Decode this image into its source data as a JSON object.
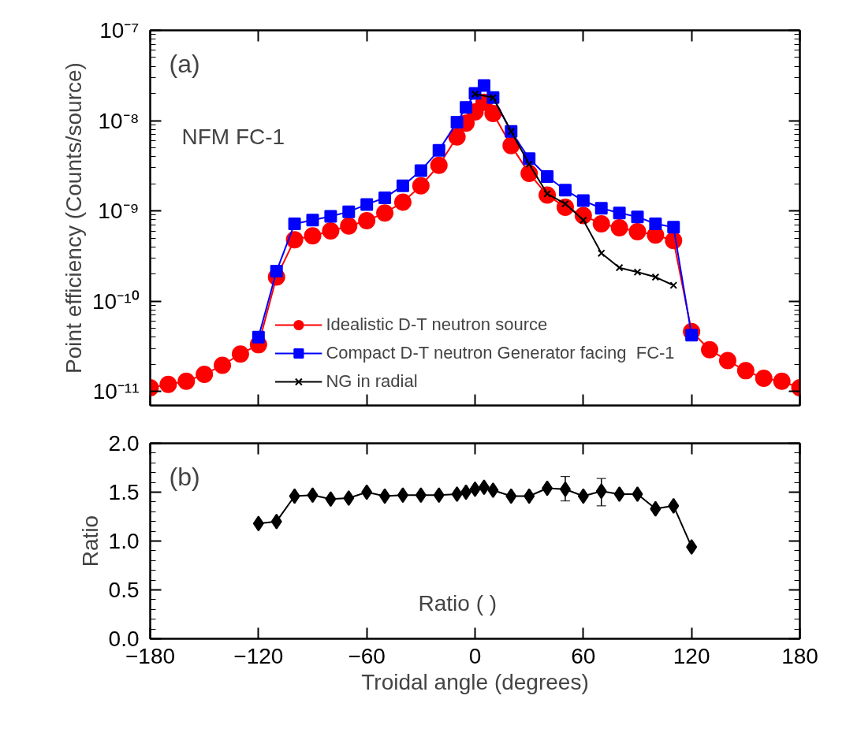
{
  "chart_data": [
    {
      "type": "line",
      "ylabel": "Point efficiency (Counts/source)",
      "log": "y",
      "grid": false,
      "legend": "bottom",
      "tick_labels": "y",
      "annotations": [
        "(a)",
        "NFM FC-1"
      ],
      "xlim": [
        -180,
        180
      ],
      "xticks": [
        -180,
        -120,
        -60,
        0,
        60,
        120,
        180
      ],
      "ylim": [
        7e-12,
        1e-07
      ],
      "yticks": [
        {
          "value": 1e-11,
          "label": "10⁻¹¹"
        },
        {
          "value": 1e-10,
          "label": "10⁻¹⁰"
        },
        {
          "value": 1e-09,
          "label": "10⁻⁹"
        },
        {
          "value": 1e-08,
          "label": "10⁻⁸"
        },
        {
          "value": 1e-07,
          "label": "10⁻⁷"
        }
      ],
      "series": [
        {
          "name": "Idealistic D-T neutron source",
          "color": "#ff0000",
          "marker": "circle",
          "x": [
            -180,
            -170,
            -160,
            -150,
            -140,
            -130,
            -120,
            -110,
            -100,
            -90,
            -80,
            -70,
            -60,
            -50,
            -40,
            -30,
            -20,
            -10,
            -5,
            0,
            5,
            10,
            20,
            30,
            40,
            50,
            60,
            70,
            80,
            90,
            100,
            110,
            120,
            130,
            140,
            150,
            160,
            170,
            180
          ],
          "values": [
            1.1e-11,
            1.2e-11,
            1.3e-11,
            1.55e-11,
            1.95e-11,
            2.6e-11,
            3.3e-11,
            1.85e-10,
            4.8e-10,
            5.3e-10,
            6e-10,
            6.8e-10,
            7.8e-10,
            9.5e-10,
            1.25e-09,
            1.9e-09,
            3.2e-09,
            6.6e-09,
            9.4e-09,
            1.25e-08,
            1.6e-08,
            1.2e-08,
            5.3e-09,
            2.6e-09,
            1.5e-09,
            1.1e-09,
            8.9e-10,
            7.2e-10,
            6.5e-10,
            5.9e-10,
            5.4e-10,
            4.7e-10,
            4.6e-11,
            2.9e-11,
            2.2e-11,
            1.7e-11,
            1.4e-11,
            1.3e-11,
            1.1e-11
          ]
        },
        {
          "name": "Compact D-T neutron Generator facing  FC-1",
          "color": "#0000ff",
          "marker": "square",
          "x": [
            -120,
            -110,
            -100,
            -90,
            -80,
            -70,
            -60,
            -50,
            -40,
            -30,
            -20,
            -10,
            -5,
            0,
            5,
            10,
            20,
            30,
            40,
            50,
            60,
            70,
            80,
            90,
            100,
            110,
            120
          ],
          "values": [
            4e-11,
            2.15e-10,
            7.2e-10,
            7.9e-10,
            8.7e-10,
            9.8e-10,
            1.18e-09,
            1.4e-09,
            1.9e-09,
            2.8e-09,
            4.7e-09,
            9.6e-09,
            1.4e-08,
            2e-08,
            2.45e-08,
            1.8e-08,
            7.6e-09,
            3.8e-09,
            2.4e-09,
            1.7e-09,
            1.3e-09,
            1.07e-09,
            9.5e-10,
            8.6e-10,
            7.2e-10,
            6.6e-10,
            4.2e-11
          ]
        },
        {
          "name": "NG in radial",
          "color": "#000000",
          "marker": "cross",
          "x": [
            0,
            10,
            20,
            30,
            40,
            50,
            60,
            70,
            80,
            90,
            100,
            110
          ],
          "values": [
            1.97e-08,
            1.8e-08,
            7.6e-09,
            3.3e-09,
            1.55e-09,
            1.2e-09,
            7.9e-10,
            3.4e-10,
            2.35e-10,
            2.1e-10,
            1.85e-10,
            1.5e-10
          ]
        }
      ]
    },
    {
      "type": "line",
      "xlabel": "Troidal angle (degrees)",
      "ylabel": "Ratio",
      "grid": false,
      "marker": "diamond",
      "annotations": [
        "(b)",
        "Ratio (      )"
      ],
      "xlim": [
        -180,
        180
      ],
      "xticks": [
        {
          "value": -180,
          "label": "−180"
        },
        {
          "value": -120,
          "label": "−120"
        },
        {
          "value": -60,
          "label": "−60"
        },
        0,
        60,
        120,
        180
      ],
      "ylim": [
        0,
        2
      ],
      "yticks": [
        {
          "value": 0,
          "label": "0.0"
        },
        {
          "value": 0.5,
          "label": "0.5"
        },
        {
          "value": 1,
          "label": "1.0"
        },
        {
          "value": 1.5,
          "label": "1.5"
        },
        {
          "value": 2,
          "label": "2.0"
        }
      ],
      "series": [
        {
          "color": "#000000",
          "x": [
            -120,
            -110,
            -100,
            -90,
            -80,
            -70,
            -60,
            -50,
            -40,
            -30,
            -20,
            -10,
            -5,
            0,
            5,
            10,
            20,
            30,
            40,
            50,
            60,
            70,
            80,
            90,
            100,
            110,
            120
          ],
          "values": [
            1.18,
            1.2,
            1.46,
            1.47,
            1.43,
            1.44,
            1.5,
            1.46,
            1.47,
            1.47,
            1.47,
            1.48,
            1.5,
            1.53,
            1.55,
            1.52,
            1.46,
            1.46,
            1.54,
            1.53,
            1.46,
            1.51,
            1.48,
            1.48,
            1.33,
            1.36,
            0.94
          ],
          "errors": [
            null,
            null,
            null,
            null,
            null,
            null,
            null,
            null,
            null,
            null,
            null,
            null,
            null,
            null,
            null,
            null,
            null,
            null,
            null,
            [
              1.41,
              1.66
            ],
            null,
            [
              1.36,
              1.64
            ],
            null,
            null,
            null,
            null,
            null
          ]
        }
      ]
    }
  ]
}
